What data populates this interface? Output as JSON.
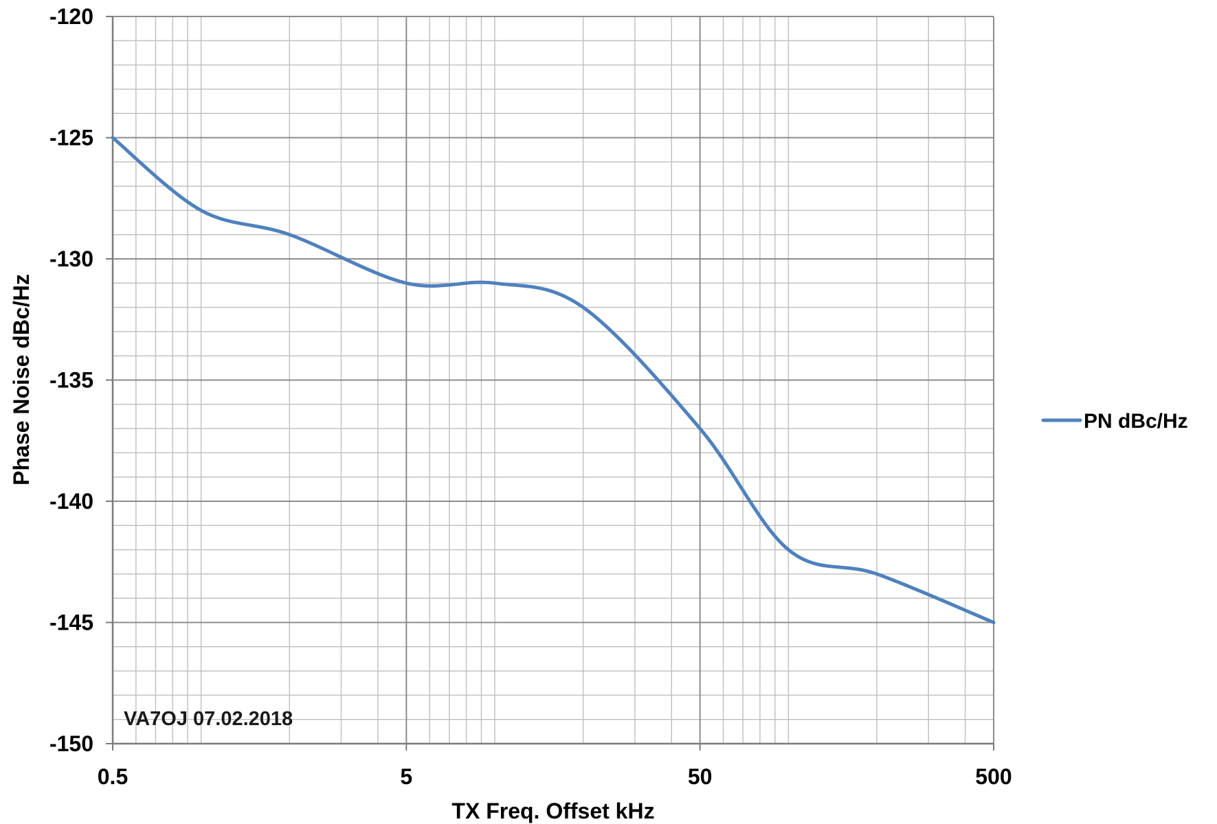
{
  "chart_data": {
    "type": "line",
    "xscale": "log",
    "xlabel": "TX Freq. Offset kHz",
    "ylabel": "Phase Noise dBc/Hz",
    "xlim": [
      0.5,
      500
    ],
    "ylim": [
      -150,
      -120
    ],
    "xticks": [
      0.5,
      5,
      50,
      500
    ],
    "xtick_labels": [
      "0.5",
      "5",
      "50",
      "500"
    ],
    "yticks": [
      -120,
      -125,
      -130,
      -135,
      -140,
      -145,
      -150
    ],
    "ytick_labels": [
      "-120",
      "-125",
      "-130",
      "-135",
      "-140",
      "-145",
      "-150"
    ],
    "grid": true,
    "legend_position": "right",
    "annotation": "VA7OJ  07.02.2018",
    "series": [
      {
        "name": "PN dBc/Hz",
        "color": "#4f81bd",
        "x": [
          0.5,
          1,
          2,
          5,
          10,
          20,
          50,
          100,
          200,
          500
        ],
        "y": [
          -125,
          -128,
          -129,
          -131,
          -131,
          -132,
          -137,
          -142,
          -143,
          -145
        ]
      }
    ]
  }
}
